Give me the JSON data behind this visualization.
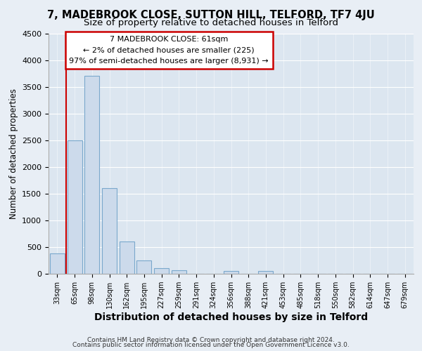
{
  "title1": "7, MADEBROOK CLOSE, SUTTON HILL, TELFORD, TF7 4JU",
  "title2": "Size of property relative to detached houses in Telford",
  "xlabel": "Distribution of detached houses by size in Telford",
  "ylabel": "Number of detached properties",
  "footer1": "Contains HM Land Registry data © Crown copyright and database right 2024.",
  "footer2": "Contains public sector information licensed under the Open Government Licence v3.0.",
  "annotation_line1": "7 MADEBROOK CLOSE: 61sqm",
  "annotation_line2": "← 2% of detached houses are smaller (225)",
  "annotation_line3": "97% of semi-detached houses are larger (8,931) →",
  "bar_color": "#ccdaeb",
  "bar_edge_color": "#7aa8cc",
  "highlight_color": "#cc0000",
  "annotation_box_color": "#cc0000",
  "background_color": "#e8eef5",
  "plot_bg_color": "#dce6f0",
  "categories": [
    "33sqm",
    "65sqm",
    "98sqm",
    "130sqm",
    "162sqm",
    "195sqm",
    "227sqm",
    "259sqm",
    "291sqm",
    "324sqm",
    "356sqm",
    "388sqm",
    "421sqm",
    "453sqm",
    "485sqm",
    "518sqm",
    "550sqm",
    "582sqm",
    "614sqm",
    "647sqm",
    "679sqm"
  ],
  "values": [
    380,
    2500,
    3700,
    1600,
    600,
    250,
    100,
    60,
    0,
    0,
    55,
    0,
    50,
    0,
    0,
    0,
    0,
    0,
    0,
    0,
    0
  ],
  "ylim": [
    0,
    4500
  ],
  "yticks": [
    0,
    500,
    1000,
    1500,
    2000,
    2500,
    3000,
    3500,
    4000,
    4500
  ],
  "vline_x_bar_index": 1,
  "title1_fontsize": 10.5,
  "title2_fontsize": 9.5,
  "xlabel_fontsize": 10,
  "ylabel_fontsize": 8.5,
  "tick_fontsize": 8,
  "footer_fontsize": 6.5
}
